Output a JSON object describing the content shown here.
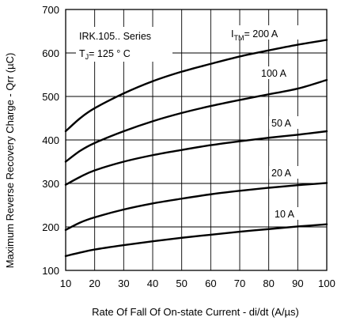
{
  "chart_data": {
    "type": "line",
    "xlabel": "Rate Of Fall Of On-state Current - di/dt (A/µs)",
    "ylabel": "Maximum Reverse Recovery Charge - Qrr (µC)",
    "xlim": [
      10,
      100
    ],
    "ylim": [
      100,
      700
    ],
    "xticks": [
      "10",
      "20",
      "30",
      "40",
      "50",
      "60",
      "70",
      "80",
      "90",
      "100"
    ],
    "yticks": [
      "100",
      "200",
      "300",
      "400",
      "500",
      "600",
      "700"
    ],
    "grid": true,
    "annotation": {
      "line1": "IRK.105.. Series",
      "line2_prefix": "T",
      "line2_sub": "J",
      "line2_suffix": "= 125 ° C"
    },
    "series": [
      {
        "label_prefix": "I",
        "label_sub": "TM",
        "label_suffix": "= 200 A",
        "x": [
          10,
          15,
          20,
          30,
          40,
          50,
          60,
          70,
          80,
          90,
          100
        ],
        "values": [
          420,
          450,
          473,
          507,
          535,
          557,
          575,
          592,
          606,
          619,
          630
        ]
      },
      {
        "label": "100 A",
        "x": [
          10,
          15,
          20,
          30,
          40,
          50,
          60,
          70,
          80,
          90,
          100
        ],
        "values": [
          350,
          375,
          393,
          420,
          443,
          462,
          478,
          492,
          505,
          518,
          538
        ]
      },
      {
        "label": "50 A",
        "x": [
          10,
          15,
          20,
          30,
          40,
          50,
          60,
          70,
          80,
          90,
          100
        ],
        "values": [
          297,
          315,
          330,
          350,
          365,
          377,
          388,
          397,
          405,
          412,
          420
        ]
      },
      {
        "label": "20 A",
        "x": [
          10,
          15,
          20,
          30,
          40,
          50,
          60,
          70,
          80,
          90,
          100
        ],
        "values": [
          193,
          210,
          222,
          240,
          254,
          265,
          275,
          283,
          290,
          296,
          301
        ]
      },
      {
        "label": "10 A",
        "x": [
          10,
          15,
          20,
          30,
          40,
          50,
          60,
          70,
          80,
          90,
          100
        ],
        "values": [
          133,
          141,
          148,
          158,
          167,
          175,
          182,
          189,
          195,
          201,
          206
        ]
      }
    ]
  }
}
